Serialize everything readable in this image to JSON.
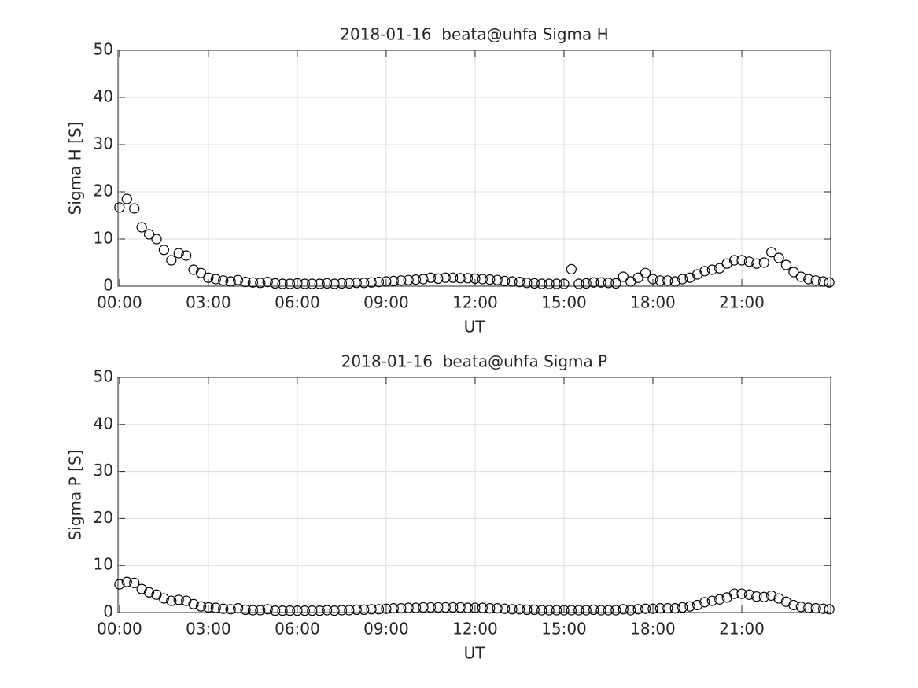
{
  "chart_data": [
    {
      "type": "scatter",
      "title": "2018-01-16  beata@uhfa Sigma H",
      "xlabel": "UT",
      "ylabel": "Sigma H [S]",
      "color": "#000000",
      "grid": true,
      "xlim": [
        -0.05,
        24
      ],
      "ylim": [
        0,
        50
      ],
      "yticks": [
        0,
        10,
        20,
        30,
        40,
        50
      ],
      "xticks": [
        {
          "value": 0,
          "label": "00:00"
        },
        {
          "value": 3,
          "label": "03:00"
        },
        {
          "value": 6,
          "label": "06:00"
        },
        {
          "value": 9,
          "label": "09:00"
        },
        {
          "value": 12,
          "label": "12:00"
        },
        {
          "value": 15,
          "label": "15:00"
        },
        {
          "value": 18,
          "label": "18:00"
        },
        {
          "value": 21,
          "label": "21:00"
        }
      ],
      "x": [
        0,
        0.25,
        0.5,
        0.75,
        1,
        1.25,
        1.5,
        1.75,
        2,
        2.25,
        2.5,
        2.75,
        3,
        3.25,
        3.5,
        3.75,
        4,
        4.25,
        4.5,
        4.75,
        5,
        5.25,
        5.5,
        5.75,
        6,
        6.25,
        6.5,
        6.75,
        7,
        7.25,
        7.5,
        7.75,
        8,
        8.25,
        8.5,
        8.75,
        9,
        9.25,
        9.5,
        9.75,
        10,
        10.25,
        10.5,
        10.75,
        11,
        11.25,
        11.5,
        11.75,
        12,
        12.25,
        12.5,
        12.75,
        13,
        13.25,
        13.5,
        13.75,
        14,
        14.25,
        14.5,
        14.75,
        15,
        15.25,
        15.5,
        15.75,
        16,
        16.25,
        16.5,
        16.75,
        17,
        17.25,
        17.5,
        17.75,
        18,
        18.25,
        18.5,
        18.75,
        19,
        19.25,
        19.5,
        19.75,
        20,
        20.25,
        20.5,
        20.75,
        21,
        21.25,
        21.5,
        21.75,
        22,
        22.25,
        22.5,
        22.75,
        23,
        23.25,
        23.5,
        23.75,
        23.95
      ],
      "values": [
        16.7,
        18.5,
        16.5,
        12.5,
        11.0,
        10.0,
        7.7,
        5.5,
        7.0,
        6.5,
        3.5,
        2.8,
        1.8,
        1.5,
        1.2,
        1.0,
        1.3,
        0.9,
        0.8,
        0.7,
        0.9,
        0.6,
        0.5,
        0.5,
        0.6,
        0.5,
        0.5,
        0.5,
        0.6,
        0.5,
        0.6,
        0.6,
        0.7,
        0.7,
        0.8,
        0.9,
        1.0,
        1.1,
        1.2,
        1.3,
        1.4,
        1.5,
        1.8,
        1.6,
        1.8,
        1.8,
        1.7,
        1.7,
        1.6,
        1.5,
        1.4,
        1.3,
        1.1,
        1.0,
        0.9,
        0.7,
        0.6,
        0.5,
        0.5,
        0.5,
        0.5,
        3.6,
        0.5,
        0.6,
        0.8,
        0.8,
        0.7,
        0.6,
        2.0,
        1.0,
        1.8,
        2.8,
        1.5,
        1.2,
        1.2,
        1.0,
        1.5,
        1.8,
        2.5,
        3.2,
        3.5,
        3.8,
        4.8,
        5.5,
        5.5,
        5.2,
        4.8,
        5.0,
        7.2,
        6.0,
        4.5,
        3.0,
        2.0,
        1.5,
        1.2,
        1.0,
        0.8
      ]
    },
    {
      "type": "scatter",
      "title": "2018-01-16  beata@uhfa Sigma P",
      "xlabel": "UT",
      "ylabel": "Sigma P [S]",
      "color": "#000000",
      "grid": true,
      "xlim": [
        -0.05,
        24
      ],
      "ylim": [
        0,
        50
      ],
      "yticks": [
        0,
        10,
        20,
        30,
        40,
        50
      ],
      "xticks": [
        {
          "value": 0,
          "label": "00:00"
        },
        {
          "value": 3,
          "label": "03:00"
        },
        {
          "value": 6,
          "label": "06:00"
        },
        {
          "value": 9,
          "label": "09:00"
        },
        {
          "value": 12,
          "label": "12:00"
        },
        {
          "value": 15,
          "label": "15:00"
        },
        {
          "value": 18,
          "label": "18:00"
        },
        {
          "value": 21,
          "label": "21:00"
        }
      ],
      "x": [
        0,
        0.25,
        0.5,
        0.75,
        1,
        1.25,
        1.5,
        1.75,
        2,
        2.25,
        2.5,
        2.75,
        3,
        3.25,
        3.5,
        3.75,
        4,
        4.25,
        4.5,
        4.75,
        5,
        5.25,
        5.5,
        5.75,
        6,
        6.25,
        6.5,
        6.75,
        7,
        7.25,
        7.5,
        7.75,
        8,
        8.25,
        8.5,
        8.75,
        9,
        9.25,
        9.5,
        9.75,
        10,
        10.25,
        10.5,
        10.75,
        11,
        11.25,
        11.5,
        11.75,
        12,
        12.25,
        12.5,
        12.75,
        13,
        13.25,
        13.5,
        13.75,
        14,
        14.25,
        14.5,
        14.75,
        15,
        15.25,
        15.5,
        15.75,
        16,
        16.25,
        16.5,
        16.75,
        17,
        17.25,
        17.5,
        17.75,
        18,
        18.25,
        18.5,
        18.75,
        19,
        19.25,
        19.5,
        19.75,
        20,
        20.25,
        20.5,
        20.75,
        21,
        21.25,
        21.5,
        21.75,
        22,
        22.25,
        22.5,
        22.75,
        23,
        23.25,
        23.5,
        23.75,
        23.95
      ],
      "values": [
        6.0,
        6.5,
        6.3,
        5.0,
        4.3,
        3.8,
        3.0,
        2.5,
        2.7,
        2.5,
        1.8,
        1.3,
        1.1,
        1.0,
        0.8,
        0.7,
        0.9,
        0.6,
        0.5,
        0.5,
        0.7,
        0.4,
        0.4,
        0.4,
        0.4,
        0.4,
        0.4,
        0.4,
        0.5,
        0.4,
        0.5,
        0.5,
        0.6,
        0.6,
        0.7,
        0.7,
        0.8,
        0.9,
        0.9,
        1.0,
        1.0,
        1.1,
        1.1,
        1.1,
        1.1,
        1.1,
        1.1,
        1.0,
        1.0,
        1.0,
        0.9,
        0.9,
        0.8,
        0.7,
        0.7,
        0.6,
        0.6,
        0.5,
        0.5,
        0.5,
        0.5,
        0.5,
        0.5,
        0.5,
        0.6,
        0.5,
        0.5,
        0.5,
        0.7,
        0.5,
        0.7,
        0.8,
        0.8,
        0.9,
        0.9,
        0.9,
        1.1,
        1.3,
        1.6,
        2.2,
        2.5,
        2.8,
        3.2,
        4.0,
        4.0,
        3.8,
        3.4,
        3.3,
        3.6,
        3.0,
        2.3,
        1.6,
        1.2,
        1.0,
        0.9,
        0.8,
        0.7
      ]
    }
  ]
}
